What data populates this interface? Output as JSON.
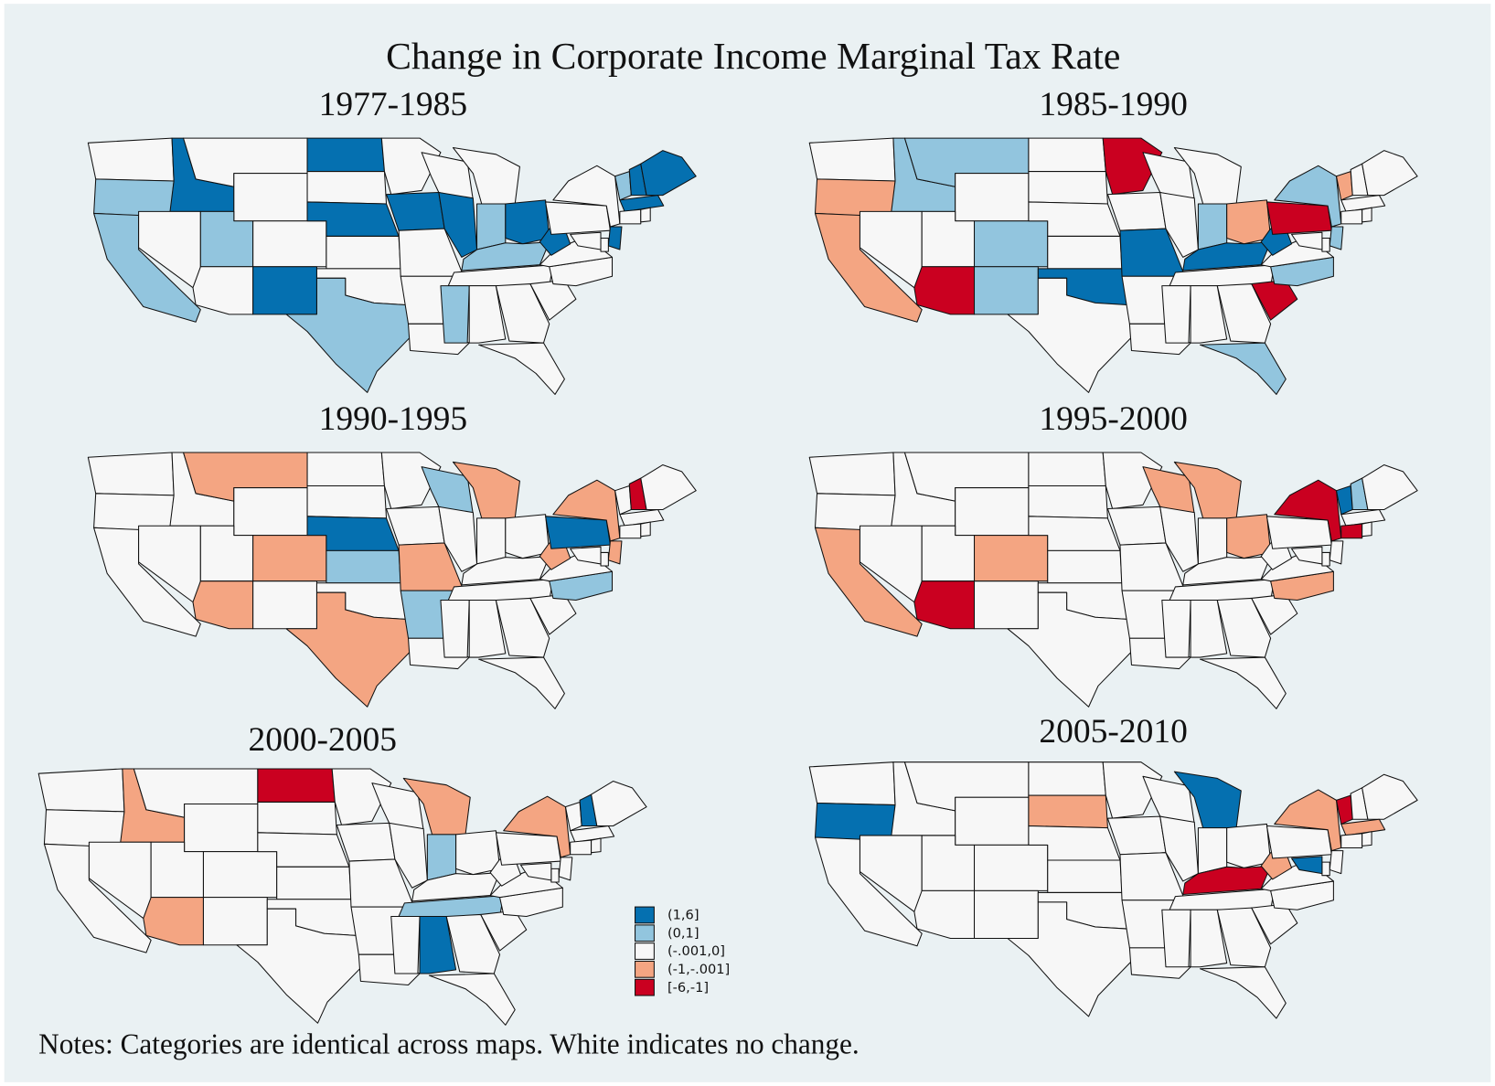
{
  "title": "Change in Corporate Income Marginal Tax Rate",
  "legend": [
    {
      "label": "(1,6]",
      "color": "#0570b0"
    },
    {
      "label": "(0,1]",
      "color": "#92c5de"
    },
    {
      "label": "(-.001,0]",
      "color": "#f7f7f7"
    },
    {
      "label": "(-1,-.001]",
      "color": "#f4a582"
    },
    {
      "label": "[-6,-1]",
      "color": "#ca0020"
    }
  ],
  "maps": [
    {
      "period": "1977-1985",
      "fills": [
        2,
        1,
        1,
        0,
        2,
        2,
        2,
        1,
        2,
        2,
        0,
        0,
        2,
        0,
        2,
        2,
        1,
        2,
        0,
        2,
        2,
        2,
        2,
        0,
        2,
        1,
        0,
        1,
        2,
        1,
        2,
        2,
        2,
        2,
        2,
        2,
        0,
        2,
        2,
        1,
        0,
        0,
        0,
        2,
        2,
        0,
        2,
        2
      ]
    },
    {
      "period": "1985-1990",
      "fills": [
        2,
        3,
        3,
        1,
        2,
        1,
        2,
        2,
        1,
        4,
        1,
        2,
        2,
        2,
        2,
        0,
        2,
        4,
        2,
        0,
        2,
        2,
        2,
        2,
        2,
        1,
        3,
        0,
        2,
        2,
        2,
        2,
        1,
        4,
        1,
        2,
        0,
        4,
        1,
        3,
        2,
        2,
        2,
        2,
        2,
        1,
        2,
        2
      ]
    },
    {
      "period": "1990-1995",
      "fills": [
        2,
        2,
        2,
        2,
        2,
        3,
        2,
        2,
        3,
        3,
        2,
        2,
        2,
        0,
        1,
        2,
        3,
        2,
        2,
        3,
        1,
        2,
        1,
        2,
        3,
        2,
        2,
        2,
        2,
        2,
        2,
        2,
        2,
        2,
        1,
        2,
        3,
        0,
        3,
        2,
        4,
        2,
        2,
        2,
        2,
        3,
        2,
        2
      ]
    },
    {
      "period": "1995-2000",
      "fills": [
        2,
        2,
        3,
        2,
        2,
        2,
        2,
        2,
        3,
        4,
        2,
        2,
        2,
        2,
        2,
        2,
        2,
        2,
        2,
        2,
        2,
        2,
        3,
        2,
        3,
        2,
        3,
        2,
        2,
        2,
        2,
        2,
        2,
        2,
        3,
        2,
        2,
        2,
        4,
        0,
        1,
        2,
        2,
        4,
        2,
        2,
        2,
        2
      ]
    },
    {
      "period": "2000-2005",
      "fills": [
        2,
        2,
        2,
        3,
        2,
        2,
        2,
        2,
        2,
        3,
        2,
        4,
        2,
        2,
        2,
        2,
        2,
        2,
        2,
        2,
        2,
        2,
        2,
        2,
        3,
        1,
        2,
        2,
        1,
        2,
        0,
        2,
        2,
        2,
        2,
        2,
        2,
        2,
        3,
        2,
        0,
        2,
        2,
        2,
        2,
        2,
        2,
        2
      ]
    },
    {
      "period": "2005-2010",
      "fills": [
        2,
        0,
        2,
        2,
        2,
        2,
        2,
        2,
        2,
        2,
        2,
        2,
        3,
        2,
        2,
        2,
        2,
        2,
        2,
        2,
        2,
        2,
        2,
        2,
        0,
        2,
        2,
        4,
        2,
        2,
        2,
        2,
        2,
        2,
        2,
        2,
        3,
        2,
        3,
        4,
        2,
        2,
        3,
        2,
        2,
        2,
        2,
        0
      ]
    }
  ],
  "notes": "Notes: Categories are identical across maps. White indicates no change."
}
